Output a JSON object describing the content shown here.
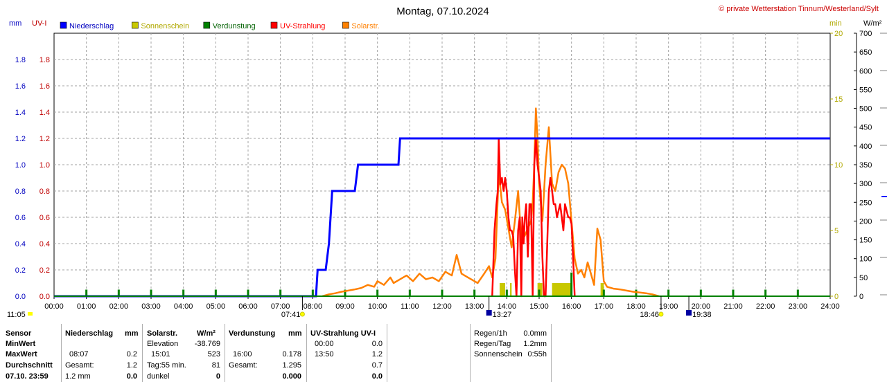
{
  "chart_data": {
    "type": "line",
    "title": "Montag, 07.10.2024",
    "copyright": "© private Wetterstation Tinnum/Westerland/Sylt",
    "units": {
      "left_outer": "mm",
      "left_inner": "UV-I",
      "right_inner": "min",
      "right_outer": "W/m²"
    },
    "x_ticks": [
      "00:00",
      "01:00",
      "02:00",
      "03:00",
      "04:00",
      "05:00",
      "06:00",
      "07:00",
      "08:00",
      "09:00",
      "10:00",
      "11:00",
      "12:00",
      "13:00",
      "14:00",
      "15:00",
      "16:00",
      "17:00",
      "18:00",
      "19:00",
      "20:00",
      "21:00",
      "22:00",
      "23:00",
      "24:00"
    ],
    "xlim": [
      0,
      24
    ],
    "axes": {
      "mm": {
        "range": [
          0,
          2
        ],
        "ticks": [
          "0.0",
          "0.2",
          "0.4",
          "0.6",
          "0.8",
          "1.0",
          "1.2",
          "1.4",
          "1.6",
          "1.8"
        ],
        "color": "#0000c0"
      },
      "uv": {
        "range": [
          0,
          2
        ],
        "ticks": [
          "0.0",
          "0.2",
          "0.4",
          "0.6",
          "0.8",
          "1.0",
          "1.2",
          "1.4",
          "1.6",
          "1.8"
        ],
        "color": "#c00000"
      },
      "min": {
        "range": [
          0,
          20
        ],
        "ticks": [
          "0",
          "5",
          "10",
          "15",
          "20"
        ],
        "color": "#b0a800"
      },
      "wm2": {
        "range": [
          0,
          700
        ],
        "ticks": [
          "0",
          "50",
          "100",
          "150",
          "200",
          "250",
          "300",
          "350",
          "400",
          "450",
          "500",
          "550",
          "600",
          "650",
          "700"
        ],
        "color": "#000000"
      }
    },
    "grid": true,
    "legend_position": "top",
    "series": [
      {
        "name": "Niederschlag",
        "color": "#0000ff",
        "axis": "mm",
        "kind": "step",
        "x": [
          0,
          8.1,
          8.15,
          8.4,
          8.5,
          8.6,
          9.3,
          9.4,
          10.65,
          10.7,
          24
        ],
        "y": [
          0,
          0,
          0.2,
          0.2,
          0.4,
          0.8,
          0.8,
          1.0,
          1.0,
          1.2,
          1.2
        ]
      },
      {
        "name": "Sonnenschein",
        "color": "#c8c800",
        "axis": "min",
        "kind": "bars",
        "bars": [
          {
            "x0": 13.78,
            "x1": 13.95,
            "y": 1
          },
          {
            "x0": 14.1,
            "x1": 14.15,
            "y": 1
          },
          {
            "x0": 14.95,
            "x1": 15.1,
            "y": 1
          },
          {
            "x0": 15.4,
            "x1": 16.0,
            "y": 1
          },
          {
            "x0": 16.9,
            "x1": 17.0,
            "y": 1
          }
        ]
      },
      {
        "name": "Verdunstung",
        "color": "#008000",
        "axis": "mm",
        "kind": "spikes",
        "x": [
          1,
          2,
          3,
          4,
          5,
          6,
          7,
          8,
          9,
          10,
          11,
          12,
          13,
          14,
          15,
          16,
          17,
          18,
          19,
          20,
          21,
          22,
          23
        ],
        "y": [
          0.05,
          0.05,
          0.05,
          0.05,
          0.05,
          0.05,
          0.05,
          0.05,
          0.05,
          0.05,
          0.05,
          0.05,
          0.05,
          0.05,
          0.05,
          0.18,
          0.05,
          0.05,
          0.05,
          0.05,
          0.05,
          0.05,
          0.05
        ]
      },
      {
        "name": "UV-Strahlung",
        "color": "#ff0000",
        "axis": "uv",
        "kind": "line",
        "x": [
          13.55,
          13.62,
          13.68,
          13.72,
          13.75,
          13.8,
          13.85,
          13.9,
          13.95,
          14.0,
          14.05,
          14.1,
          14.15,
          14.2,
          14.25,
          14.3,
          14.35,
          14.4,
          14.45,
          14.48,
          14.52,
          14.56,
          14.6,
          14.65,
          14.7,
          14.75,
          14.8,
          14.85,
          14.9,
          14.95,
          15.0,
          15.05,
          15.1,
          15.15,
          15.2,
          15.25,
          15.3,
          15.35,
          15.4,
          15.45,
          15.5,
          15.55,
          15.6,
          15.65,
          15.7,
          15.75,
          15.8,
          15.85,
          15.9,
          15.95,
          16.0,
          16.05,
          16.1
        ],
        "y": [
          0,
          0.5,
          0.7,
          0.8,
          1.2,
          0.85,
          0.9,
          0.8,
          0.9,
          0.8,
          0.6,
          0.5,
          0.5,
          0.45,
          0.2,
          0,
          0.5,
          0.6,
          0.0,
          0.6,
          0.4,
          0.6,
          0.7,
          0.3,
          0.7,
          0.7,
          0.0,
          1.0,
          1.2,
          1.0,
          0.9,
          0.8,
          0.3,
          0.0,
          0.0,
          0.4,
          0.8,
          0.9,
          0.8,
          0.7,
          0.7,
          0.6,
          0.65,
          0.7,
          0.6,
          0.5,
          0.7,
          0.65,
          0.6,
          0.6,
          0.55,
          0.3,
          0.0
        ]
      },
      {
        "name": "Solarstr.",
        "color": "#ff8000",
        "axis": "wm2",
        "kind": "line",
        "x": [
          8.3,
          8.5,
          8.7,
          8.9,
          9.1,
          9.3,
          9.5,
          9.7,
          9.9,
          10.0,
          10.2,
          10.4,
          10.5,
          10.7,
          10.9,
          11.1,
          11.3,
          11.5,
          11.7,
          11.9,
          12.1,
          12.3,
          12.45,
          12.6,
          12.8,
          13.0,
          13.1,
          13.3,
          13.45,
          13.55,
          13.65,
          13.75,
          13.85,
          13.95,
          14.05,
          14.15,
          14.25,
          14.35,
          14.45,
          14.55,
          14.65,
          14.75,
          14.8,
          14.85,
          14.9,
          14.95,
          15.0,
          15.05,
          15.1,
          15.2,
          15.3,
          15.4,
          15.5,
          15.6,
          15.7,
          15.8,
          15.9,
          16.0,
          16.1,
          16.2,
          16.3,
          16.4,
          16.5,
          16.6,
          16.7,
          16.8,
          16.9,
          17.0,
          17.1,
          17.3,
          17.5,
          17.7,
          17.9,
          18.1,
          18.3,
          18.5,
          18.7
        ],
        "y": [
          0,
          5,
          8,
          12,
          15,
          18,
          22,
          30,
          25,
          40,
          30,
          50,
          35,
          45,
          55,
          40,
          60,
          45,
          50,
          40,
          65,
          55,
          110,
          60,
          50,
          40,
          35,
          60,
          80,
          50,
          100,
          330,
          250,
          230,
          180,
          130,
          200,
          280,
          150,
          160,
          180,
          200,
          250,
          350,
          500,
          420,
          300,
          250,
          200,
          350,
          450,
          300,
          280,
          330,
          350,
          340,
          300,
          200,
          100,
          60,
          70,
          50,
          90,
          60,
          30,
          180,
          150,
          40,
          25,
          20,
          18,
          15,
          12,
          10,
          8,
          5,
          0
        ]
      }
    ],
    "markers": [
      {
        "time": "11:05",
        "label": "11:05",
        "x": 0.0,
        "row": "lower",
        "kind": "sunrise-bar"
      },
      {
        "time": "07:41",
        "label": "07:41",
        "x": 7.68,
        "row": "upper",
        "kind": "sunrise"
      },
      {
        "time": "13:27",
        "label": "13:27",
        "x": 13.45,
        "row": "upper",
        "kind": "moon"
      },
      {
        "time": "18:46",
        "label": "18:46",
        "x": 18.77,
        "row": "upper",
        "kind": "sunset"
      },
      {
        "time": "19:38",
        "label": "19:38",
        "x": 19.63,
        "row": "upper",
        "kind": "moon"
      }
    ]
  },
  "stats": {
    "labels": {
      "sensor": "Sensor",
      "min": "MinWert",
      "max": "MaxWert",
      "avg": "Durchschnitt",
      "date": "07.10. 23:59"
    },
    "niederschlag": {
      "title": "Niederschlag",
      "unit": "mm",
      "max_time": "08:07",
      "max_value": "0.2",
      "gesamt_label": "Gesamt:",
      "gesamt_value": "1.2",
      "last_label": "1.2 mm",
      "last_value": "0.0"
    },
    "solar": {
      "title": "Solarstr.",
      "unit": "W/m²",
      "elev_label": "Elevation",
      "elev_value": "-38.769",
      "max_time": "15:01",
      "max_value": "523",
      "tag_label": "Tag:55 min.",
      "tag_value": "81",
      "last_label": "dunkel",
      "last_value": "0"
    },
    "verdunstung": {
      "title": "Verdunstung",
      "unit": "mm",
      "max_time": "16:00",
      "max_value": "0.178",
      "gesamt_label": "Gesamt:",
      "gesamt_value": "1.295",
      "last_value": "0.000"
    },
    "uv": {
      "title": "UV-Strahlung UV-I",
      "min_time": "00:00",
      "min_value": "0.0",
      "max_time": "13:50",
      "max_value": "1.2",
      "avg_value": "0.7",
      "last_value": "0.0"
    },
    "regen": {
      "r1_label": "Regen/1h",
      "r1_value": "0.0mm",
      "r2_label": "Regen/Tag",
      "r2_value": "1.2mm",
      "r3_label": "Sonnenschein",
      "r3_value": "0:55h"
    }
  }
}
